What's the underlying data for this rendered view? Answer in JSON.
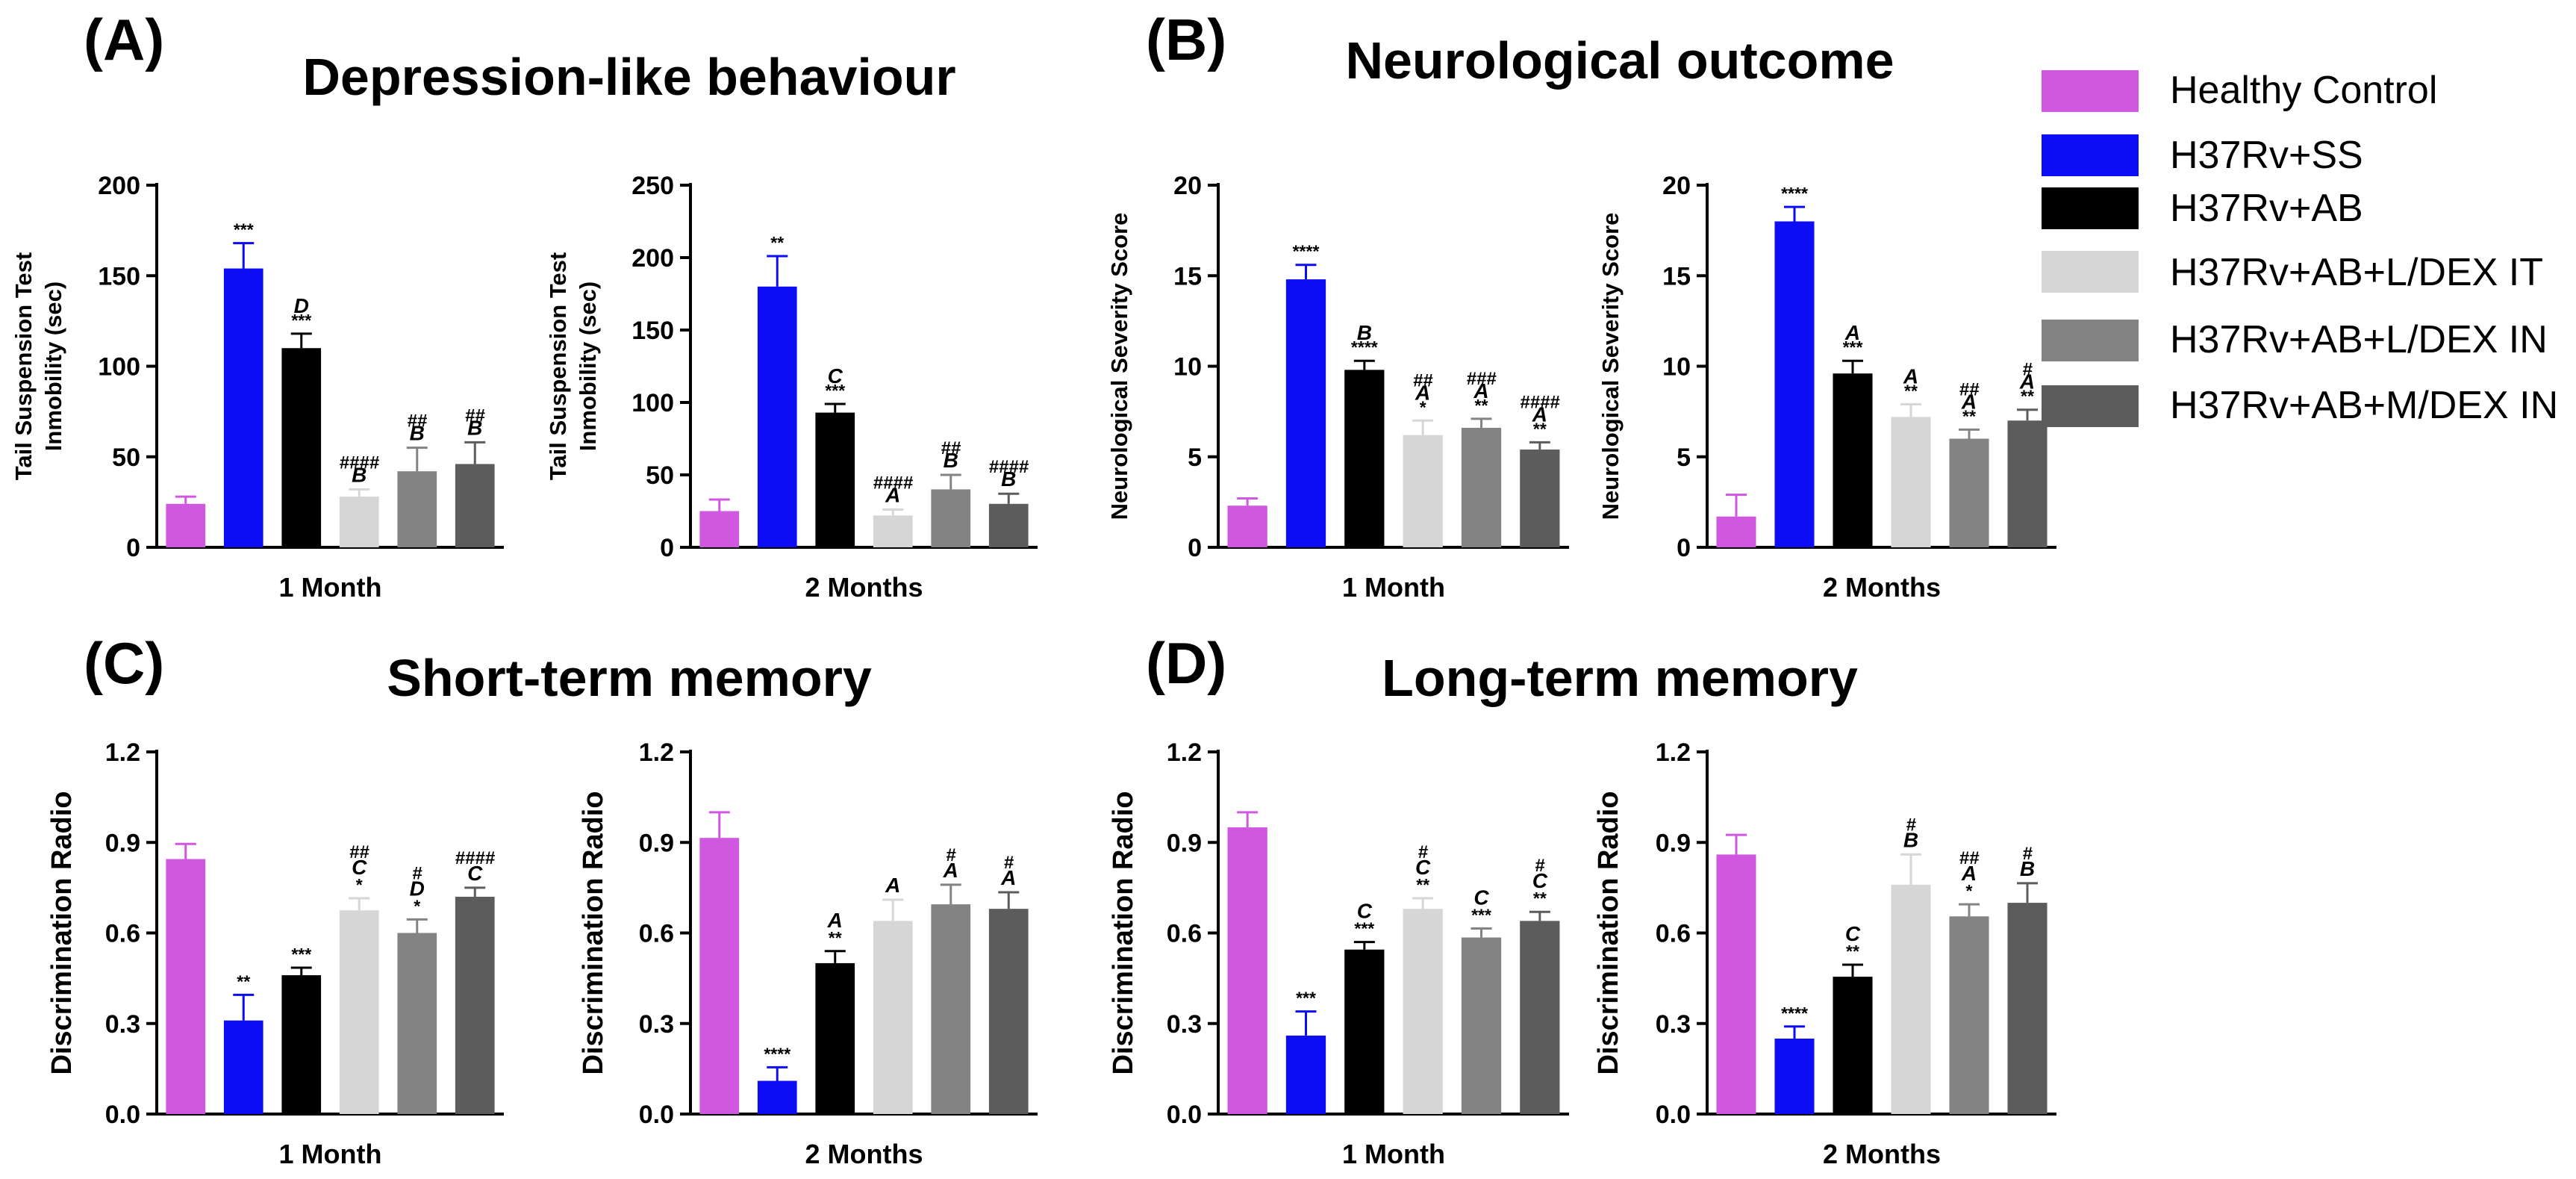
{
  "panels": [
    {
      "letter": "(A)",
      "title": "Depression-like behaviour"
    },
    {
      "letter": "(B)",
      "title": "Neurological outcome"
    },
    {
      "letter": "(C)",
      "title": "Short-term memory"
    },
    {
      "letter": "(D)",
      "title": "Long-term memory"
    }
  ],
  "legend": [
    {
      "label": "Healthy Control",
      "color": "#d057df"
    },
    {
      "label": "H37Rv+SS",
      "color": "#0d0df5"
    },
    {
      "label": "H37Rv+AB",
      "color": "#000000"
    },
    {
      "label": "H37Rv+AB+L/DEX IT",
      "color": "#d6d6d6"
    },
    {
      "label": "H37Rv+AB+L/DEX IN",
      "color": "#838383"
    },
    {
      "label": "H37Rv+AB+M/DEX IN",
      "color": "#5c5c5c"
    }
  ],
  "chart_data": [
    {
      "type": "bar",
      "panel": "(A)",
      "title": "Depression-like behaviour",
      "xlabel": "1 Month",
      "ylabel": [
        "Tail Suspension Test",
        "Inmobility (sec)"
      ],
      "ylim": [
        0,
        200
      ],
      "yticks": [
        "0",
        "50",
        "100",
        "150",
        "200"
      ],
      "categories": [
        "Healthy Control",
        "H37Rv+SS",
        "H37Rv+AB",
        "H37Rv+AB+L/DEX IT",
        "H37Rv+AB+L/DEX IN",
        "H37Rv+AB+M/DEX IN"
      ],
      "values": [
        24,
        154,
        110,
        28,
        42,
        46
      ],
      "errors": [
        4,
        14,
        8,
        4,
        13,
        12
      ],
      "annotations": [
        [],
        [
          "***"
        ],
        [
          "D",
          "***"
        ],
        [
          "####",
          "B"
        ],
        [
          "##",
          "B"
        ],
        [
          "##",
          "B"
        ]
      ]
    },
    {
      "type": "bar",
      "panel": "(A)",
      "title": "Depression-like behaviour",
      "xlabel": "2 Months",
      "ylabel": [
        "Tail Suspension Test",
        "Inmobility (sec)"
      ],
      "ylim": [
        0,
        250
      ],
      "yticks": [
        "0",
        "50",
        "100",
        "150",
        "200",
        "250"
      ],
      "categories": [
        "Healthy Control",
        "H37Rv+SS",
        "H37Rv+AB",
        "H37Rv+AB+L/DEX IT",
        "H37Rv+AB+L/DEX IN",
        "H37Rv+AB+M/DEX IN"
      ],
      "values": [
        25,
        180,
        93,
        22,
        40,
        30
      ],
      "errors": [
        8,
        21,
        6,
        4,
        10,
        7
      ],
      "annotations": [
        [],
        [
          "**"
        ],
        [
          "C",
          "***"
        ],
        [
          "####",
          "A"
        ],
        [
          "##",
          "B"
        ],
        [
          "####",
          "B"
        ]
      ]
    },
    {
      "type": "bar",
      "panel": "(B)",
      "title": "Neurological outcome",
      "xlabel": "1 Month",
      "ylabel": [
        "Neurological Severity Score"
      ],
      "ylim": [
        0,
        20
      ],
      "yticks": [
        "0",
        "5",
        "10",
        "15",
        "20"
      ],
      "categories": [
        "Healthy Control",
        "H37Rv+SS",
        "H37Rv+AB",
        "H37Rv+AB+L/DEX IT",
        "H37Rv+AB+L/DEX IN",
        "H37Rv+AB+M/DEX IN"
      ],
      "values": [
        2.3,
        14.8,
        9.8,
        6.2,
        6.6,
        5.4
      ],
      "errors": [
        0.4,
        0.8,
        0.5,
        0.8,
        0.5,
        0.4
      ],
      "annotations": [
        [],
        [
          "****"
        ],
        [
          "B",
          "****"
        ],
        [
          "##",
          "A",
          "*"
        ],
        [
          "###",
          "A",
          "**"
        ],
        [
          "####",
          "A",
          "**"
        ]
      ]
    },
    {
      "type": "bar",
      "panel": "(B)",
      "title": "Neurological outcome",
      "xlabel": "2 Months",
      "ylabel": [
        "Neurological Severity Score"
      ],
      "ylim": [
        0,
        20
      ],
      "yticks": [
        "0",
        "5",
        "10",
        "15",
        "20"
      ],
      "categories": [
        "Healthy Control",
        "H37Rv+SS",
        "H37Rv+AB",
        "H37Rv+AB+L/DEX IT",
        "H37Rv+AB+L/DEX IN",
        "H37Rv+AB+M/DEX IN"
      ],
      "values": [
        1.7,
        18.0,
        9.6,
        7.2,
        6.0,
        7.0
      ],
      "errors": [
        1.2,
        0.8,
        0.7,
        0.7,
        0.5,
        0.6
      ],
      "annotations": [
        [],
        [
          "****"
        ],
        [
          "A",
          "***"
        ],
        [
          "A",
          "**"
        ],
        [
          "##",
          "A",
          "**"
        ],
        [
          "#",
          "A",
          "**"
        ]
      ]
    },
    {
      "type": "bar",
      "panel": "(C)",
      "title": "Short-term memory",
      "xlabel": "1 Month",
      "ylabel": [
        "Discrimination Radio"
      ],
      "ylim": [
        0,
        1.2
      ],
      "yticks": [
        "0.0",
        "0.3",
        "0.6",
        "0.9",
        "1.2"
      ],
      "categories": [
        "Healthy Control",
        "H37Rv+SS",
        "H37Rv+AB",
        "H37Rv+AB+L/DEX IT",
        "H37Rv+AB+L/DEX IN",
        "H37Rv+AB+M/DEX IN"
      ],
      "values": [
        0.845,
        0.31,
        0.46,
        0.675,
        0.6,
        0.72
      ],
      "errors": [
        0.05,
        0.085,
        0.025,
        0.04,
        0.045,
        0.03
      ],
      "annotations": [
        [],
        [
          "**"
        ],
        [
          "***"
        ],
        [
          "##",
          "C",
          "*"
        ],
        [
          "#",
          "D",
          "*"
        ],
        [
          "####",
          "C"
        ]
      ]
    },
    {
      "type": "bar",
      "panel": "(C)",
      "title": "Short-term memory",
      "xlabel": "2 Months",
      "ylabel": [
        "Discrimination Radio"
      ],
      "ylim": [
        0,
        1.2
      ],
      "yticks": [
        "0.0",
        "0.3",
        "0.6",
        "0.9",
        "1.2"
      ],
      "categories": [
        "Healthy Control",
        "H37Rv+SS",
        "H37Rv+AB",
        "H37Rv+AB+L/DEX IT",
        "H37Rv+AB+L/DEX IN",
        "H37Rv+AB+M/DEX IN"
      ],
      "values": [
        0.915,
        0.11,
        0.5,
        0.64,
        0.695,
        0.68
      ],
      "errors": [
        0.085,
        0.045,
        0.04,
        0.07,
        0.065,
        0.055
      ],
      "annotations": [
        [],
        [
          "****"
        ],
        [
          "A",
          "**"
        ],
        [
          "A"
        ],
        [
          "#",
          "A"
        ],
        [
          "#",
          "A"
        ]
      ]
    },
    {
      "type": "bar",
      "panel": "(D)",
      "title": "Long-term memory",
      "xlabel": "1 Month",
      "ylabel": [
        "Discrimination Radio"
      ],
      "ylim": [
        0,
        1.2
      ],
      "yticks": [
        "0.0",
        "0.3",
        "0.6",
        "0.9",
        "1.2"
      ],
      "categories": [
        "Healthy Control",
        "H37Rv+SS",
        "H37Rv+AB",
        "H37Rv+AB+L/DEX IT",
        "H37Rv+AB+L/DEX IN",
        "H37Rv+AB+M/DEX IN"
      ],
      "values": [
        0.95,
        0.26,
        0.545,
        0.68,
        0.585,
        0.64
      ],
      "errors": [
        0.05,
        0.08,
        0.025,
        0.035,
        0.03,
        0.03
      ],
      "annotations": [
        [],
        [
          "***"
        ],
        [
          "C",
          "***"
        ],
        [
          "#",
          "C",
          "**"
        ],
        [
          "C",
          "***"
        ],
        [
          "#",
          "C",
          "**"
        ]
      ]
    },
    {
      "type": "bar",
      "panel": "(D)",
      "title": "Long-term memory",
      "xlabel": "2 Months",
      "ylabel": [
        "Discrimination Radio"
      ],
      "ylim": [
        0,
        1.2
      ],
      "yticks": [
        "0.0",
        "0.3",
        "0.6",
        "0.9",
        "1.2"
      ],
      "categories": [
        "Healthy Control",
        "H37Rv+SS",
        "H37Rv+AB",
        "H37Rv+AB+L/DEX IT",
        "H37Rv+AB+L/DEX IN",
        "H37Rv+AB+M/DEX IN"
      ],
      "values": [
        0.86,
        0.25,
        0.455,
        0.76,
        0.655,
        0.7
      ],
      "errors": [
        0.065,
        0.04,
        0.04,
        0.1,
        0.04,
        0.065
      ],
      "annotations": [
        [],
        [
          "****"
        ],
        [
          "C",
          "**"
        ],
        [
          "#",
          "B"
        ],
        [
          "##",
          "A",
          "*"
        ],
        [
          "#",
          "B"
        ]
      ]
    }
  ]
}
